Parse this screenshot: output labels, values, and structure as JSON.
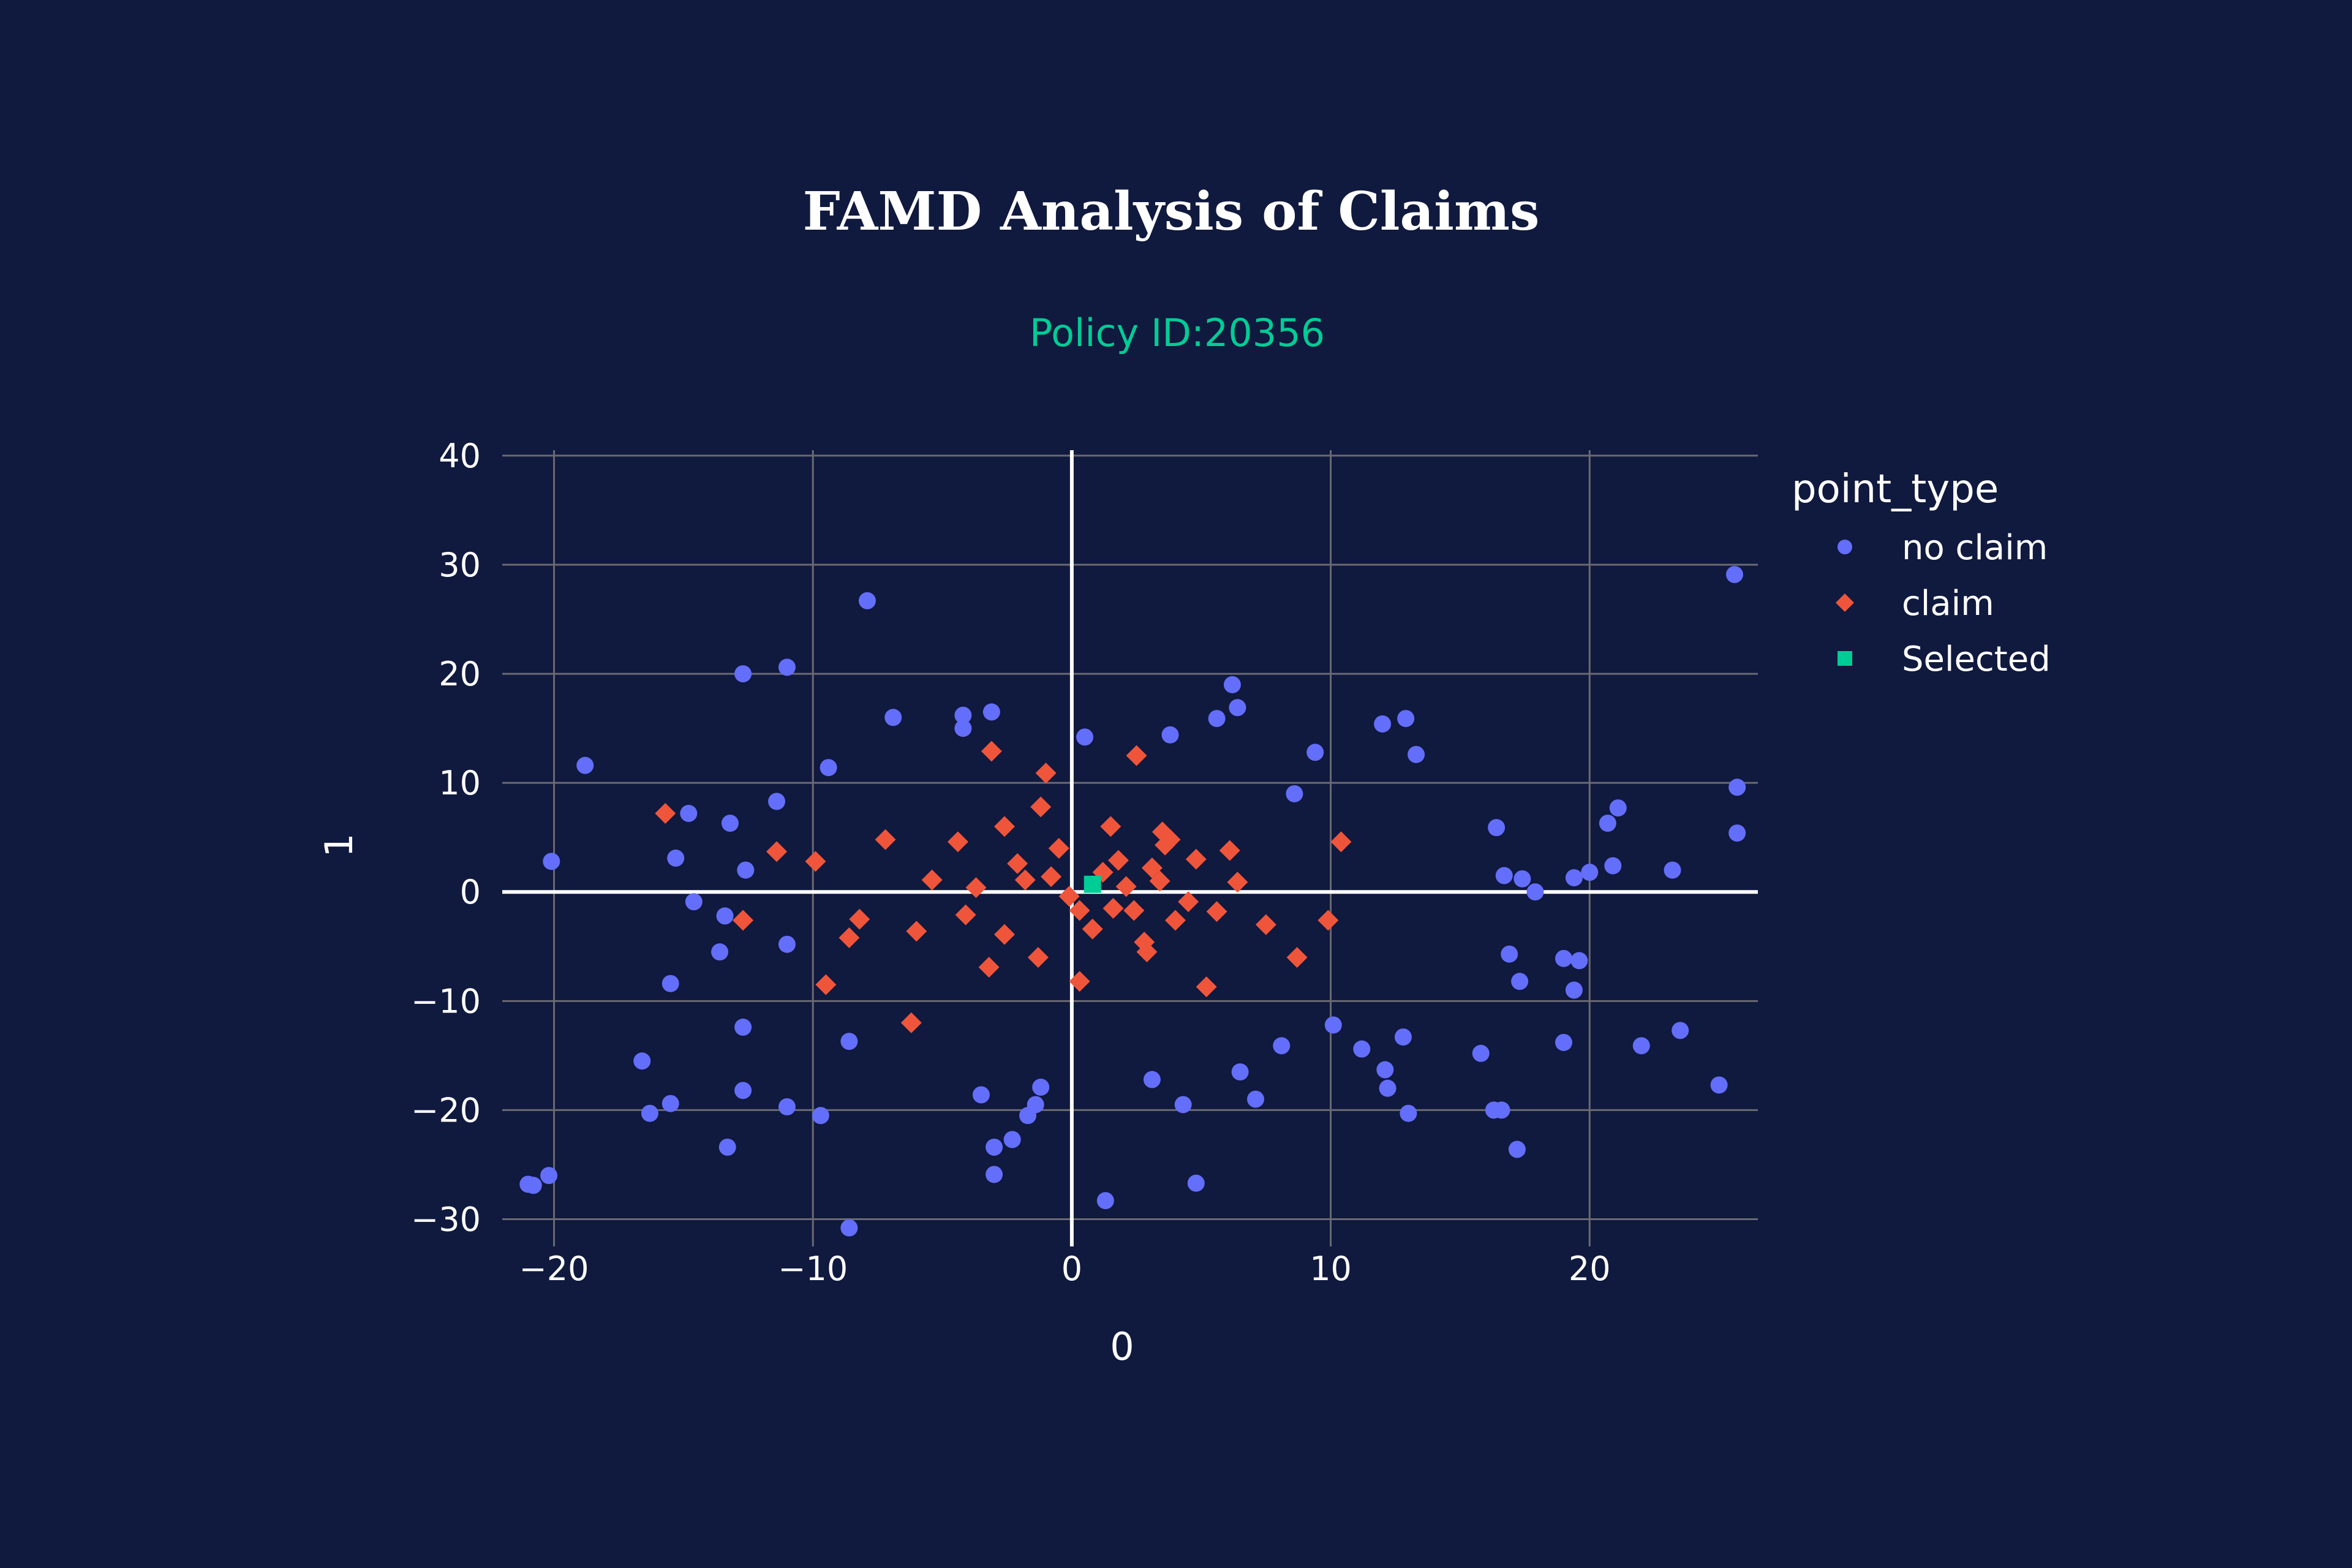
{
  "colors": {
    "background": "#10193e",
    "grid": "#6a6a72",
    "zeroline": "#ffffff",
    "no_claim": "#636efa",
    "claim": "#ef553b",
    "selected": "#00cc96",
    "text": "#ffffff"
  },
  "chart_data": {
    "type": "scatter",
    "title": "FAMD Analysis of Claims",
    "subtitle": "Policy ID:20356",
    "xlabel": "0",
    "ylabel": "1",
    "xlim": [
      -22,
      26.5
    ],
    "ylim": [
      -32.5,
      40.5
    ],
    "x_ticks": [
      -20,
      -10,
      0,
      10,
      20
    ],
    "y_ticks": [
      -30,
      -20,
      -10,
      0,
      10,
      20,
      30,
      40
    ],
    "x_tick_labels": [
      "−20",
      "−10",
      "0",
      "10",
      "20"
    ],
    "y_tick_labels": [
      "−30",
      "−20",
      "−10",
      "0",
      "10",
      "20",
      "30",
      "40"
    ],
    "grid": true,
    "legend": {
      "title": "point_type",
      "position": "right"
    },
    "series": [
      {
        "name": "no claim",
        "marker": "circle",
        "color": "#636efa",
        "points": [
          [
            25.6,
            29.1
          ],
          [
            -7.9,
            26.7
          ],
          [
            -12.7,
            20.0
          ],
          [
            -11.0,
            20.6
          ],
          [
            -18.8,
            11.6
          ],
          [
            -20.1,
            2.8
          ],
          [
            -21.0,
            -26.8
          ],
          [
            -20.8,
            -26.9
          ],
          [
            -20.2,
            -26.0
          ],
          [
            -16.6,
            -15.5
          ],
          [
            -16.3,
            -20.3
          ],
          [
            -15.5,
            -19.4
          ],
          [
            -15.5,
            -8.4
          ],
          [
            -13.3,
            -23.4
          ],
          [
            -12.7,
            -18.2
          ],
          [
            -12.7,
            -12.4
          ],
          [
            -11.0,
            -19.7
          ],
          [
            -9.7,
            -20.5
          ],
          [
            -8.6,
            -30.8
          ],
          [
            -8.6,
            -13.7
          ],
          [
            -3.0,
            -25.9
          ],
          [
            -3.0,
            -23.4
          ],
          [
            -2.3,
            -22.7
          ],
          [
            -1.7,
            -20.5
          ],
          [
            -1.4,
            -19.5
          ],
          [
            -3.5,
            -18.6
          ],
          [
            -1.2,
            -17.9
          ],
          [
            1.3,
            -28.3
          ],
          [
            4.8,
            -26.7
          ],
          [
            4.3,
            -19.5
          ],
          [
            7.1,
            -19.0
          ],
          [
            6.5,
            -16.5
          ],
          [
            3.1,
            -17.2
          ],
          [
            8.1,
            -14.1
          ],
          [
            10.1,
            -12.2
          ],
          [
            11.2,
            -14.4
          ],
          [
            12.1,
            -16.3
          ],
          [
            12.2,
            -18.0
          ],
          [
            12.8,
            -13.3
          ],
          [
            13.0,
            -20.3
          ],
          [
            15.8,
            -14.8
          ],
          [
            16.3,
            -20.0
          ],
          [
            16.6,
            -20.0
          ],
          [
            17.2,
            -23.6
          ],
          [
            19.0,
            -13.8
          ],
          [
            19.4,
            -9.0
          ],
          [
            19.0,
            -6.1
          ],
          [
            19.6,
            -6.3
          ],
          [
            22.0,
            -14.1
          ],
          [
            23.5,
            -12.7
          ],
          [
            25.0,
            -17.7
          ],
          [
            25.7,
            9.6
          ],
          [
            25.7,
            5.4
          ],
          [
            23.2,
            2.0
          ],
          [
            21.1,
            7.7
          ],
          [
            20.7,
            6.3
          ],
          [
            20.9,
            2.4
          ],
          [
            20.0,
            1.8
          ],
          [
            19.4,
            1.3
          ],
          [
            17.9,
            0.0
          ],
          [
            17.4,
            1.2
          ],
          [
            16.7,
            1.5
          ],
          [
            16.4,
            5.9
          ],
          [
            16.9,
            -5.7
          ],
          [
            17.3,
            -8.2
          ],
          [
            13.3,
            12.6
          ],
          [
            12.9,
            15.9
          ],
          [
            12.0,
            15.4
          ],
          [
            9.4,
            12.8
          ],
          [
            8.6,
            9.0
          ],
          [
            6.4,
            16.9
          ],
          [
            6.2,
            19.0
          ],
          [
            5.6,
            15.9
          ],
          [
            3.8,
            14.4
          ],
          [
            0.5,
            14.2
          ],
          [
            -3.1,
            16.5
          ],
          [
            -4.2,
            16.2
          ],
          [
            -4.2,
            15.0
          ],
          [
            -6.9,
            16.0
          ],
          [
            -9.4,
            11.4
          ],
          [
            -13.2,
            6.3
          ],
          [
            -14.8,
            7.2
          ],
          [
            -15.3,
            3.1
          ],
          [
            -14.6,
            -0.9
          ],
          [
            -13.4,
            -2.2
          ],
          [
            -13.6,
            -5.5
          ],
          [
            -11.4,
            8.3
          ],
          [
            -12.6,
            2.0
          ],
          [
            -11.0,
            -4.8
          ]
        ]
      },
      {
        "name": "claim",
        "marker": "diamond",
        "color": "#ef553b",
        "points": [
          [
            -15.7,
            7.2
          ],
          [
            -11.4,
            3.7
          ],
          [
            -12.7,
            -2.6
          ],
          [
            -9.5,
            -8.5
          ],
          [
            -9.9,
            2.8
          ],
          [
            -8.6,
            -4.2
          ],
          [
            -8.2,
            -2.5
          ],
          [
            -7.2,
            4.8
          ],
          [
            -6.2,
            -12.0
          ],
          [
            -6.0,
            -3.6
          ],
          [
            -3.1,
            12.9
          ],
          [
            -1.0,
            10.9
          ],
          [
            2.5,
            12.5
          ],
          [
            -1.2,
            7.8
          ],
          [
            1.5,
            6.0
          ],
          [
            3.5,
            5.5
          ],
          [
            4.8,
            3.0
          ],
          [
            6.1,
            3.8
          ],
          [
            7.5,
            -3.0
          ],
          [
            8.7,
            -6.0
          ],
          [
            5.2,
            -8.7
          ],
          [
            10.4,
            4.6
          ],
          [
            9.9,
            -2.6
          ],
          [
            -4.4,
            4.6
          ],
          [
            -2.6,
            6.0
          ],
          [
            -1.8,
            1.1
          ],
          [
            -0.5,
            4.0
          ],
          [
            0.3,
            -1.7
          ],
          [
            1.8,
            2.9
          ],
          [
            2.8,
            -4.6
          ],
          [
            3.4,
            1.0
          ],
          [
            4.0,
            -2.6
          ],
          [
            -4.1,
            -2.1
          ],
          [
            -2.6,
            -3.9
          ],
          [
            -1.3,
            -6.0
          ],
          [
            0.8,
            -3.4
          ],
          [
            2.1,
            0.5
          ],
          [
            3.6,
            4.3
          ],
          [
            4.5,
            -0.9
          ],
          [
            -3.7,
            0.4
          ],
          [
            -0.8,
            1.4
          ],
          [
            1.2,
            1.8
          ],
          [
            2.4,
            -1.7
          ],
          [
            -5.4,
            1.1
          ],
          [
            -3.2,
            -6.9
          ],
          [
            0.3,
            -8.2
          ],
          [
            2.9,
            -5.5
          ],
          [
            5.6,
            -1.8
          ],
          [
            6.4,
            0.9
          ],
          [
            3.1,
            2.2
          ],
          [
            -0.1,
            -0.4
          ],
          [
            1.6,
            -1.5
          ],
          [
            3.8,
            4.8
          ],
          [
            -2.1,
            2.6
          ]
        ]
      },
      {
        "name": "Selected",
        "marker": "square",
        "color": "#00cc96",
        "points": [
          [
            0.8,
            0.7
          ]
        ]
      }
    ]
  }
}
